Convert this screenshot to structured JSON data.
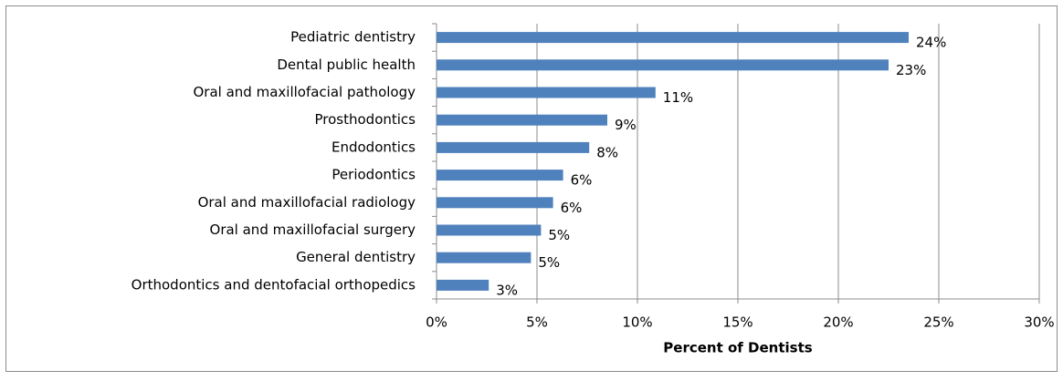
{
  "chart_data": {
    "type": "bar",
    "orientation": "horizontal",
    "x_label": "Percent of Dentists",
    "categories": [
      "Pediatric dentistry",
      "Dental public health",
      "Oral and maxillofacial pathology",
      "Prosthodontics",
      "Endodontics",
      "Periodontics",
      "Oral and maxillofacial radiology",
      "Oral and maxillofacial surgery",
      "General dentistry",
      "Orthodontics and dentofacial orthopedics"
    ],
    "values": [
      23.5,
      22.5,
      10.9,
      8.5,
      7.6,
      6.3,
      5.8,
      5.2,
      4.7,
      2.6
    ],
    "value_labels": [
      "24%",
      "23%",
      "11%",
      "9%",
      "8%",
      "6%",
      "6%",
      "5%",
      "5%",
      "3%"
    ],
    "color": "#4f81bd",
    "xlim": [
      0,
      30
    ],
    "xticks": [
      {
        "value": 0,
        "label": "0%"
      },
      {
        "value": 5,
        "label": "5%"
      },
      {
        "value": 10,
        "label": "10%"
      },
      {
        "value": 15,
        "label": "15%"
      },
      {
        "value": 20,
        "label": "20%"
      },
      {
        "value": 25,
        "label": "25%"
      },
      {
        "value": 30,
        "label": "30%"
      }
    ],
    "grid": true
  }
}
